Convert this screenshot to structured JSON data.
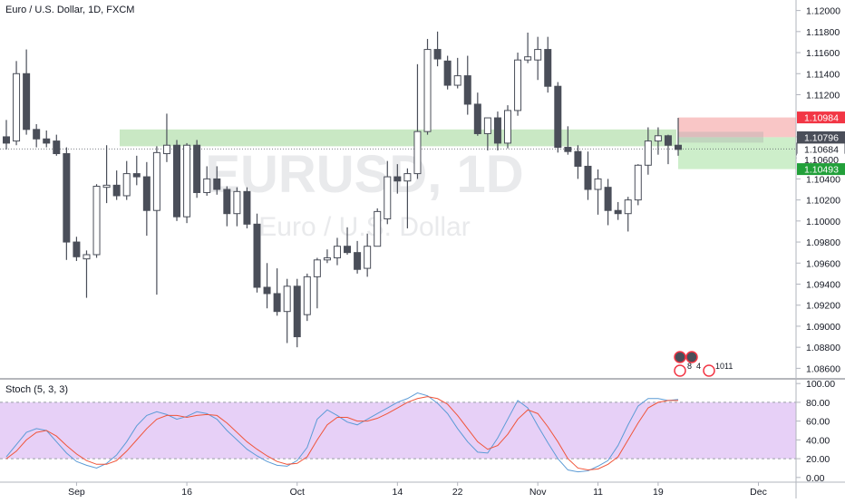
{
  "header": {
    "title": "Euro / U.S. Dollar, 1D, FXCM"
  },
  "watermark": {
    "symbol": "EURUSD, 1D",
    "name": "Euro / U.S. Dollar"
  },
  "stoch": {
    "label": "Stoch (5, 3, 3)"
  },
  "colors": {
    "bull_body": "#ffffff",
    "bear_body": "#4a4e59",
    "wick": "#4a4e59",
    "zone": "#b7e0b0",
    "stop": "#f7b8b8",
    "target": "#c8ecc4",
    "k_line": "#5c9bd6",
    "d_line": "#f0553a",
    "stoch_band": "#e3c8f6",
    "tag_red": "#f23645",
    "tag_dark": "#4a4e59",
    "tag_green": "#22a03a"
  },
  "event_markers": {
    "top": [
      "8",
      "4"
    ],
    "bottom": [
      "10",
      "11"
    ]
  },
  "chart_data": [
    {
      "type": "candlestick",
      "title": "Euro / U.S. Dollar, 1D, FXCM",
      "y_ticks": [
        "1.12000",
        "1.11800",
        "1.11600",
        "1.11400",
        "1.11200",
        "1.10800",
        "1.10600",
        "1.10400",
        "1.10200",
        "1.10000",
        "1.09800",
        "1.09600",
        "1.09400",
        "1.09200",
        "1.09000",
        "1.08800",
        "1.08600"
      ],
      "ylim": [
        1.085,
        1.121
      ],
      "x_ticks": [
        "Sep",
        "16",
        "Oct",
        "14",
        "22",
        "Nov",
        "11",
        "19",
        "Dec"
      ],
      "price_tags": [
        {
          "label": "1.10984",
          "color": "#f23645"
        },
        {
          "label": "1.10796",
          "color": "#4a4e59"
        },
        {
          "label": "1.10684",
          "color": "#ffffff"
        },
        {
          "label": "1.10600",
          "color": "#ffffff"
        },
        {
          "label": "1.10493",
          "color": "#22a03a"
        }
      ],
      "horizontal_zone": [
        1.1071,
        1.1087
      ],
      "position": {
        "entry": 1.10796,
        "stop": 1.10984,
        "target": 1.10493
      },
      "candles": [
        {
          "o": 1.108,
          "h": 1.1096,
          "l": 1.1068,
          "c": 1.1074
        },
        {
          "o": 1.1076,
          "h": 1.1152,
          "l": 1.1072,
          "c": 1.114
        },
        {
          "o": 1.114,
          "h": 1.1163,
          "l": 1.1082,
          "c": 1.1087
        },
        {
          "o": 1.1087,
          "h": 1.1092,
          "l": 1.107,
          "c": 1.1078
        },
        {
          "o": 1.1078,
          "h": 1.1086,
          "l": 1.107,
          "c": 1.1074
        },
        {
          "o": 1.1076,
          "h": 1.1082,
          "l": 1.1062,
          "c": 1.1064
        },
        {
          "o": 1.1064,
          "h": 1.107,
          "l": 1.0963,
          "c": 1.098
        },
        {
          "o": 1.098,
          "h": 1.0985,
          "l": 1.0962,
          "c": 1.0966
        },
        {
          "o": 1.0964,
          "h": 1.0972,
          "l": 1.0927,
          "c": 1.0968
        },
        {
          "o": 1.0968,
          "h": 1.1035,
          "l": 1.0965,
          "c": 1.1033
        },
        {
          "o": 1.1032,
          "h": 1.1072,
          "l": 1.1017,
          "c": 1.1034
        },
        {
          "o": 1.1034,
          "h": 1.1048,
          "l": 1.102,
          "c": 1.1024
        },
        {
          "o": 1.1024,
          "h": 1.1057,
          "l": 1.102,
          "c": 1.1045
        },
        {
          "o": 1.1045,
          "h": 1.1062,
          "l": 1.1034,
          "c": 1.1042
        },
        {
          "o": 1.1042,
          "h": 1.1056,
          "l": 1.0986,
          "c": 1.101
        },
        {
          "o": 1.101,
          "h": 1.1071,
          "l": 1.093,
          "c": 1.1065
        },
        {
          "o": 1.1064,
          "h": 1.1102,
          "l": 1.1056,
          "c": 1.1072
        },
        {
          "o": 1.1072,
          "h": 1.1077,
          "l": 1.1,
          "c": 1.1004
        },
        {
          "o": 1.1004,
          "h": 1.1074,
          "l": 1.0998,
          "c": 1.1072
        },
        {
          "o": 1.1072,
          "h": 1.1077,
          "l": 1.1022,
          "c": 1.1027
        },
        {
          "o": 1.1027,
          "h": 1.1052,
          "l": 1.1024,
          "c": 1.104
        },
        {
          "o": 1.104,
          "h": 1.1052,
          "l": 1.1025,
          "c": 1.103
        },
        {
          "o": 1.103,
          "h": 1.1033,
          "l": 1.0995,
          "c": 1.1007
        },
        {
          "o": 1.1007,
          "h": 1.1032,
          "l": 1.0995,
          "c": 1.1028
        },
        {
          "o": 1.1028,
          "h": 1.1032,
          "l": 1.0993,
          "c": 1.0997
        },
        {
          "o": 1.0997,
          "h": 1.1007,
          "l": 1.0932,
          "c": 1.0937
        },
        {
          "o": 1.0937,
          "h": 1.096,
          "l": 1.0917,
          "c": 1.0931
        },
        {
          "o": 1.0931,
          "h": 1.0955,
          "l": 1.091,
          "c": 1.0914
        },
        {
          "o": 1.0914,
          "h": 1.0945,
          "l": 1.0884,
          "c": 1.0938
        },
        {
          "o": 1.0938,
          "h": 1.0945,
          "l": 1.088,
          "c": 1.089
        },
        {
          "o": 1.0911,
          "h": 1.095,
          "l": 1.0905,
          "c": 1.0947
        },
        {
          "o": 1.0947,
          "h": 1.0965,
          "l": 1.0917,
          "c": 1.0963
        },
        {
          "o": 1.0963,
          "h": 1.0973,
          "l": 1.096,
          "c": 1.0965
        },
        {
          "o": 1.0965,
          "h": 1.0984,
          "l": 1.0958,
          "c": 1.0976
        },
        {
          "o": 1.0976,
          "h": 1.0994,
          "l": 1.0968,
          "c": 1.097
        },
        {
          "o": 1.097,
          "h": 1.0981,
          "l": 1.095,
          "c": 1.0954
        },
        {
          "o": 1.0955,
          "h": 1.0988,
          "l": 1.0947,
          "c": 1.0976
        },
        {
          "o": 1.0976,
          "h": 1.1012,
          "l": 1.0976,
          "c": 1.1009
        },
        {
          "o": 1.1002,
          "h": 1.1057,
          "l": 1.0997,
          "c": 1.1042
        },
        {
          "o": 1.1042,
          "h": 1.1054,
          "l": 1.1026,
          "c": 1.1038
        },
        {
          "o": 1.1038,
          "h": 1.105,
          "l": 1.0993,
          "c": 1.1045
        },
        {
          "o": 1.1045,
          "h": 1.1149,
          "l": 1.104,
          "c": 1.1085
        },
        {
          "o": 1.1085,
          "h": 1.1173,
          "l": 1.1082,
          "c": 1.1163
        },
        {
          "o": 1.1163,
          "h": 1.118,
          "l": 1.1147,
          "c": 1.1154
        },
        {
          "o": 1.1152,
          "h": 1.1157,
          "l": 1.1125,
          "c": 1.1129
        },
        {
          "o": 1.1129,
          "h": 1.1155,
          "l": 1.1126,
          "c": 1.1138
        },
        {
          "o": 1.1138,
          "h": 1.1157,
          "l": 1.1101,
          "c": 1.1111
        },
        {
          "o": 1.1111,
          "h": 1.1122,
          "l": 1.1081,
          "c": 1.1083
        },
        {
          "o": 1.1083,
          "h": 1.1097,
          "l": 1.1067,
          "c": 1.1098
        },
        {
          "o": 1.1098,
          "h": 1.1104,
          "l": 1.1067,
          "c": 1.1074
        },
        {
          "o": 1.1074,
          "h": 1.111,
          "l": 1.1069,
          "c": 1.1105
        },
        {
          "o": 1.1105,
          "h": 1.116,
          "l": 1.11,
          "c": 1.1153
        },
        {
          "o": 1.1153,
          "h": 1.1179,
          "l": 1.115,
          "c": 1.1156
        },
        {
          "o": 1.1153,
          "h": 1.1175,
          "l": 1.1134,
          "c": 1.1163
        },
        {
          "o": 1.1163,
          "h": 1.1175,
          "l": 1.1122,
          "c": 1.1128
        },
        {
          "o": 1.1128,
          "h": 1.1132,
          "l": 1.1065,
          "c": 1.107
        },
        {
          "o": 1.107,
          "h": 1.109,
          "l": 1.1063,
          "c": 1.1066
        },
        {
          "o": 1.1066,
          "h": 1.1072,
          "l": 1.104,
          "c": 1.1052
        },
        {
          "o": 1.1052,
          "h": 1.1066,
          "l": 1.102,
          "c": 1.103
        },
        {
          "o": 1.103,
          "h": 1.1049,
          "l": 1.1006,
          "c": 1.104
        },
        {
          "o": 1.1032,
          "h": 1.104,
          "l": 1.0996,
          "c": 1.101
        },
        {
          "o": 1.101,
          "h": 1.1018,
          "l": 1.1001,
          "c": 1.1007
        },
        {
          "o": 1.1007,
          "h": 1.1023,
          "l": 1.099,
          "c": 1.102
        },
        {
          "o": 1.102,
          "h": 1.1054,
          "l": 1.1015,
          "c": 1.1053
        },
        {
          "o": 1.1053,
          "h": 1.1089,
          "l": 1.1044,
          "c": 1.1076
        },
        {
          "o": 1.1076,
          "h": 1.1089,
          "l": 1.1063,
          "c": 1.1081
        },
        {
          "o": 1.1081,
          "h": 1.1082,
          "l": 1.1054,
          "c": 1.1072
        },
        {
          "o": 1.1072,
          "h": 1.1098,
          "l": 1.1062,
          "c": 1.1068
        }
      ]
    },
    {
      "type": "line",
      "title": "Stoch (5, 3, 3)",
      "y_ticks": [
        "100.00",
        "80.00",
        "60.00",
        "40.00",
        "20.00",
        "0.00"
      ],
      "ylim": [
        -5,
        105
      ],
      "band": [
        20,
        80
      ],
      "series": [
        {
          "values": [
            22,
            35,
            48,
            52,
            50,
            38,
            26,
            17,
            13,
            10,
            15,
            24,
            38,
            55,
            66,
            70,
            67,
            62,
            65,
            70,
            68,
            62,
            50,
            40,
            30,
            23,
            17,
            13,
            12,
            18,
            32,
            62,
            72,
            66,
            59,
            56,
            62,
            68,
            74,
            80,
            84,
            90,
            87,
            79,
            68,
            52,
            38,
            27,
            26,
            42,
            62,
            82,
            74,
            55,
            37,
            20,
            8,
            6,
            7,
            12,
            18,
            34,
            56,
            76,
            84,
            84,
            82,
            83
          ]
        },
        {
          "values": [
            20,
            28,
            40,
            48,
            50,
            44,
            34,
            25,
            18,
            14,
            14,
            18,
            28,
            40,
            52,
            62,
            66,
            66,
            64,
            66,
            67,
            66,
            58,
            48,
            38,
            30,
            23,
            17,
            14,
            15,
            22,
            40,
            56,
            64,
            64,
            60,
            60,
            63,
            68,
            74,
            80,
            84,
            86,
            84,
            78,
            66,
            52,
            38,
            30,
            34,
            46,
            62,
            72,
            68,
            54,
            38,
            20,
            10,
            8,
            9,
            14,
            22,
            40,
            58,
            74,
            80,
            82,
            82
          ]
        }
      ]
    }
  ]
}
